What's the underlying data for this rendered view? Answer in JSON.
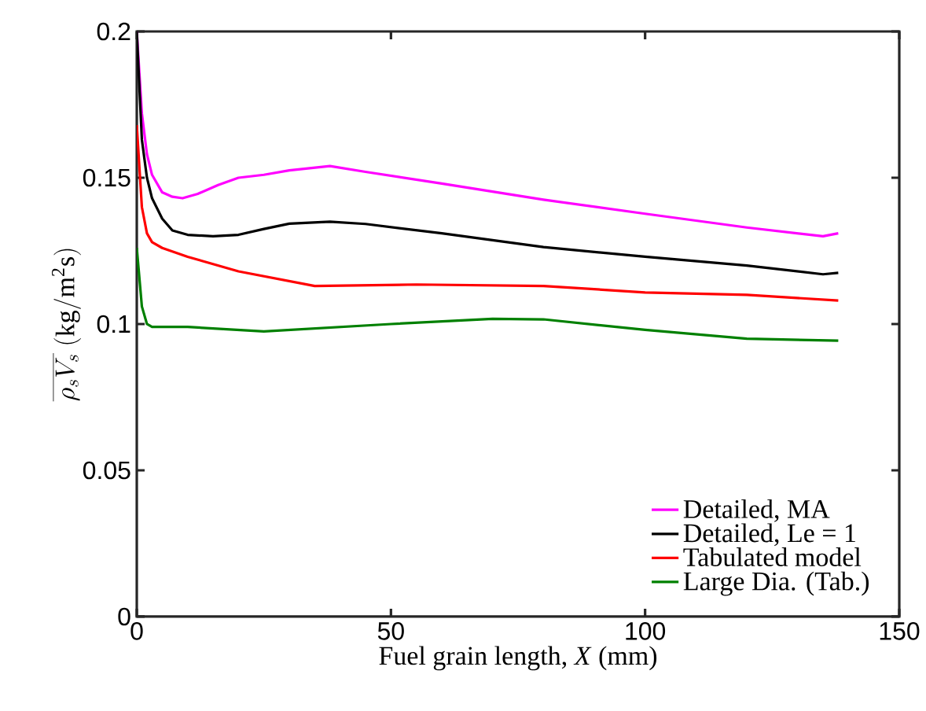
{
  "chart_data": {
    "type": "line",
    "xlabel": "Fuel grain length, *X* (mm)",
    "ylabel": "\\overline{\\rho_s V_s}\\ (\\mathrm{kg/m^2 s})",
    "xlim": [
      0,
      150
    ],
    "xticks": [
      0,
      50,
      100,
      150
    ],
    "ylim": [
      0,
      0.2
    ],
    "yticks": [
      0,
      0.05,
      0.1,
      0.15,
      0.2
    ],
    "grid": false,
    "legend": "bottom right",
    "line_style": "solid",
    "marker": "none",
    "series": [
      {
        "name": "Detailed, MA",
        "color": "#ff00ff",
        "x": [
          0,
          1,
          2,
          3,
          5,
          7,
          9,
          12,
          16,
          20,
          25,
          30,
          38,
          45,
          60,
          80,
          100,
          120,
          135,
          138
        ],
        "values": [
          0.2,
          0.172,
          0.158,
          0.151,
          0.145,
          0.1435,
          0.143,
          0.1445,
          0.1475,
          0.15,
          0.151,
          0.1525,
          0.154,
          0.152,
          0.148,
          0.1425,
          0.1377,
          0.133,
          0.13,
          0.131
        ]
      },
      {
        "name": "Detailed, Le = 1",
        "color": "#000000",
        "x": [
          0,
          1,
          2,
          3,
          5,
          7,
          10,
          15,
          20,
          25,
          30,
          38,
          45,
          60,
          80,
          100,
          120,
          135,
          138
        ],
        "values": [
          0.2,
          0.163,
          0.15,
          0.143,
          0.136,
          0.132,
          0.1305,
          0.13,
          0.1305,
          0.1325,
          0.1343,
          0.135,
          0.1342,
          0.131,
          0.1263,
          0.123,
          0.12,
          0.117,
          0.1175
        ]
      },
      {
        "name": "Tabulated model",
        "color": "#ff0000",
        "x": [
          0,
          1,
          2,
          3,
          5,
          10,
          20,
          35,
          55,
          80,
          100,
          120,
          138
        ],
        "values": [
          0.168,
          0.14,
          0.131,
          0.128,
          0.126,
          0.123,
          0.118,
          0.113,
          0.1135,
          0.113,
          0.1108,
          0.11,
          0.108
        ]
      },
      {
        "name": "Large Dia. (Tab.)",
        "color": "#008000",
        "x": [
          0,
          1,
          2,
          3,
          5,
          10,
          25,
          50,
          70,
          80,
          100,
          120,
          138
        ],
        "values": [
          0.126,
          0.106,
          0.1,
          0.099,
          0.099,
          0.099,
          0.0975,
          0.1,
          0.1018,
          0.1016,
          0.098,
          0.095,
          0.0943
        ]
      }
    ]
  }
}
